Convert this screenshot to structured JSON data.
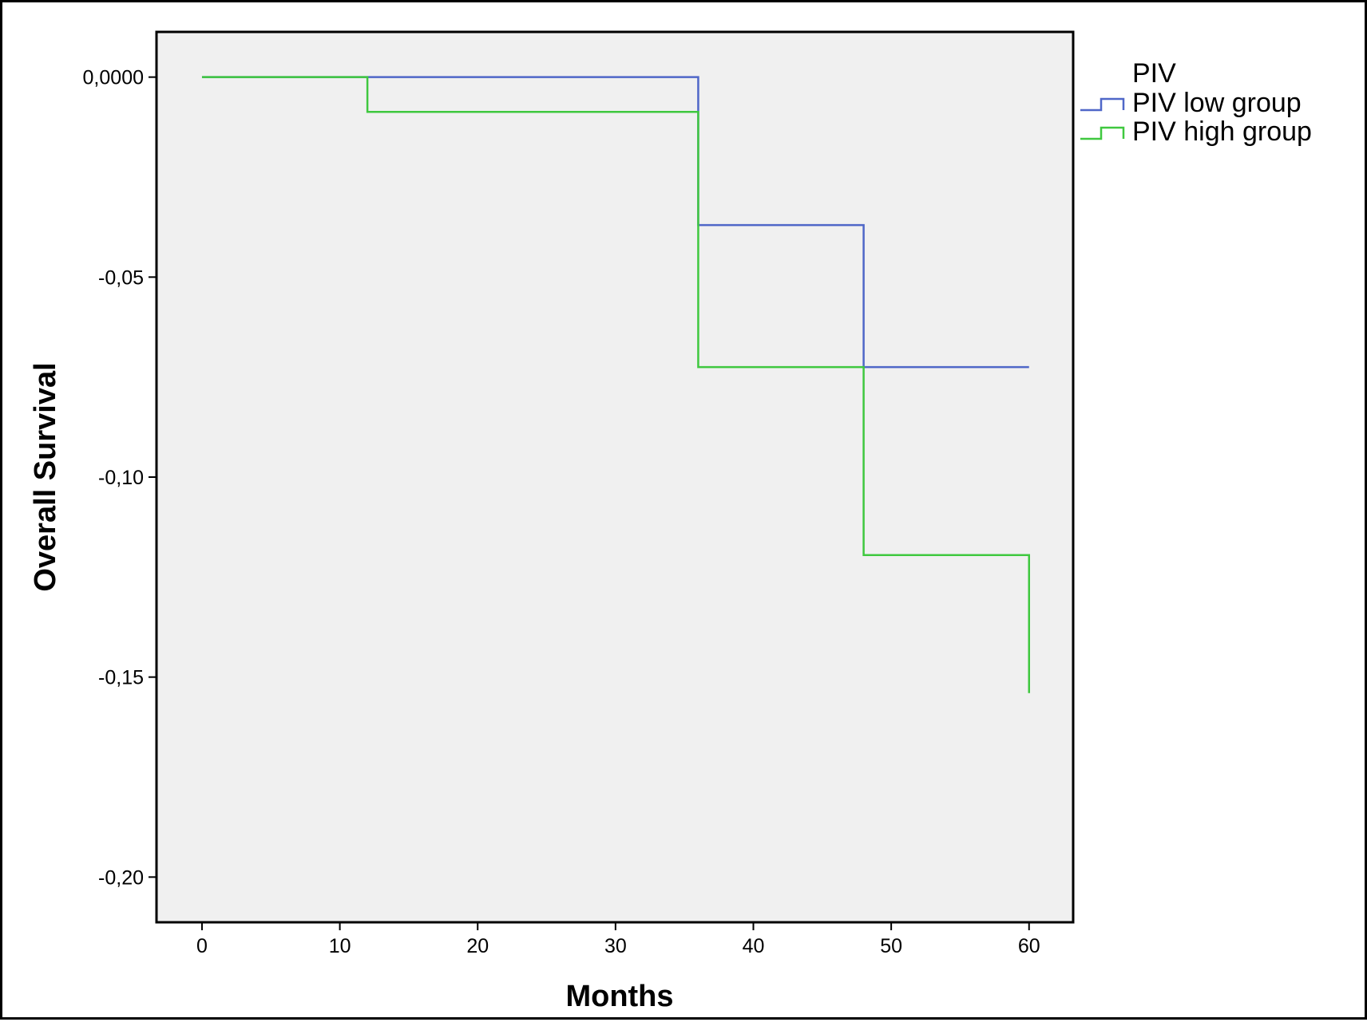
{
  "chart_data": {
    "type": "line",
    "step": true,
    "xlabel": "Months",
    "ylabel": "Overall Survival",
    "xlim": [
      -3.3,
      63.2
    ],
    "ylim": [
      -0.2113,
      0.0113
    ],
    "xticks": [
      0,
      10,
      20,
      30,
      40,
      50,
      60
    ],
    "xtick_labels": [
      "0",
      "10",
      "20",
      "30",
      "40",
      "50",
      "60"
    ],
    "yticks": [
      0,
      -0.05,
      -0.1,
      -0.15,
      -0.2
    ],
    "ytick_labels": [
      "0,0000",
      "-0,05",
      "-0,10",
      "-0,15",
      "-0,20"
    ],
    "grid": false,
    "plot_background": "#f0f0f0",
    "legend": {
      "title": "PIV",
      "position": "right-top, outside plot",
      "entries": [
        "PIV low group",
        "PIV high group"
      ]
    },
    "series": [
      {
        "name": "PIV low group",
        "color": "#4f67c8",
        "x": [
          0,
          36,
          48,
          60
        ],
        "y": [
          0,
          -0.037,
          -0.0725,
          -0.0725
        ]
      },
      {
        "name": "PIV high group",
        "color": "#3fc83f",
        "x": [
          0,
          12,
          36,
          48,
          60,
          60
        ],
        "y": [
          0,
          -0.0087,
          -0.0725,
          -0.1195,
          -0.1195,
          -0.154
        ]
      }
    ]
  }
}
